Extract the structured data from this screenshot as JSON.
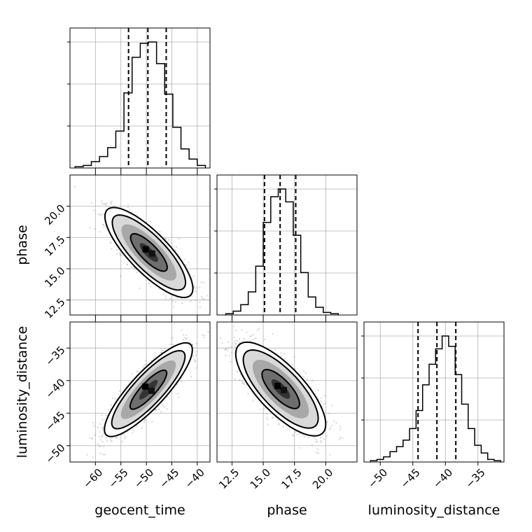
{
  "chart_data": {
    "type": "corner",
    "parameters": [
      "geocent_time",
      "phase",
      "luminosity_distance"
    ],
    "axis_labels": {
      "geocent_time": "geocent_time",
      "phase": "phase",
      "luminosity_distance": "luminosity_distance"
    },
    "ranges": {
      "geocent_time": [
        -65,
        -37.5
      ],
      "phase": [
        11.3,
        22.5
      ],
      "luminosity_distance": [
        -52.5,
        -31
      ]
    },
    "ticks": {
      "geocent_time": [
        -60,
        -55,
        -50,
        -45,
        -40
      ],
      "phase": [
        12.5,
        15.0,
        17.5,
        20.0
      ],
      "luminosity_distance": [
        -50,
        -45,
        -40,
        -35
      ]
    },
    "tick_labels": {
      "geocent_time": [
        "−60",
        "−55",
        "−50",
        "−45",
        "−40"
      ],
      "phase": [
        "12.5",
        "15.0",
        "17.5",
        "20.0"
      ],
      "luminosity_distance": [
        "−50",
        "−45",
        "−40",
        "−35"
      ]
    },
    "quantiles": {
      "geocent_time": [
        -53.5,
        -49.7,
        -46.1
      ],
      "phase": [
        15.1,
        16.35,
        17.6
      ],
      "luminosity_distance": [
        -44.2,
        -41.3,
        -38.4
      ]
    },
    "histograms": {
      "geocent_time": {
        "edges": [
          -64,
          -62.4,
          -60.8,
          -59.2,
          -57.6,
          -56,
          -54.4,
          -52.8,
          -51.2,
          -49.6,
          -48,
          -46.4,
          -44.8,
          -43.2,
          -41.6,
          -40,
          -38.4
        ],
        "counts": [
          1,
          2,
          5,
          9,
          16,
          29,
          59,
          87,
          98,
          99,
          82,
          58,
          32,
          15,
          7,
          2
        ]
      },
      "phase": {
        "edges": [
          12.0,
          12.6,
          13.2,
          13.8,
          14.4,
          15.0,
          15.6,
          16.2,
          16.8,
          17.4,
          18.0,
          18.6,
          19.2,
          19.8,
          20.4,
          21.0
        ],
        "counts": [
          1,
          3,
          8,
          18,
          38,
          72,
          92,
          98,
          88,
          62,
          33,
          14,
          6,
          2,
          1
        ]
      },
      "luminosity_distance": {
        "edges": [
          -51.5,
          -50.5,
          -49.5,
          -48.5,
          -47.5,
          -46.5,
          -45.5,
          -44.5,
          -43.5,
          -42.5,
          -41.5,
          -40.5,
          -39.5,
          -38.5,
          -37.5,
          -36.5,
          -35.5,
          -34.5,
          -33.5,
          -32.5,
          -31.5
        ],
        "counts": [
          1,
          2,
          4,
          8,
          12,
          17,
          26,
          40,
          60,
          76,
          88,
          98,
          90,
          68,
          45,
          26,
          13,
          7,
          2,
          1
        ]
      }
    },
    "pairs": [
      {
        "x": "geocent_time",
        "y": "phase",
        "center": [
          -49.5,
          16.3
        ],
        "sd": [
          3.6,
          1.5
        ],
        "corr": -0.8
      },
      {
        "x": "geocent_time",
        "y": "luminosity_distance",
        "center": [
          -49.6,
          -41.4
        ],
        "sd": [
          3.6,
          3.0
        ],
        "corr": 0.85
      },
      {
        "x": "phase",
        "y": "luminosity_distance",
        "center": [
          16.4,
          -41.3
        ],
        "sd": [
          1.5,
          3.0
        ],
        "corr": -0.75
      }
    ],
    "contour_levels": [
      1,
      2,
      2.4
    ],
    "grid": true
  }
}
